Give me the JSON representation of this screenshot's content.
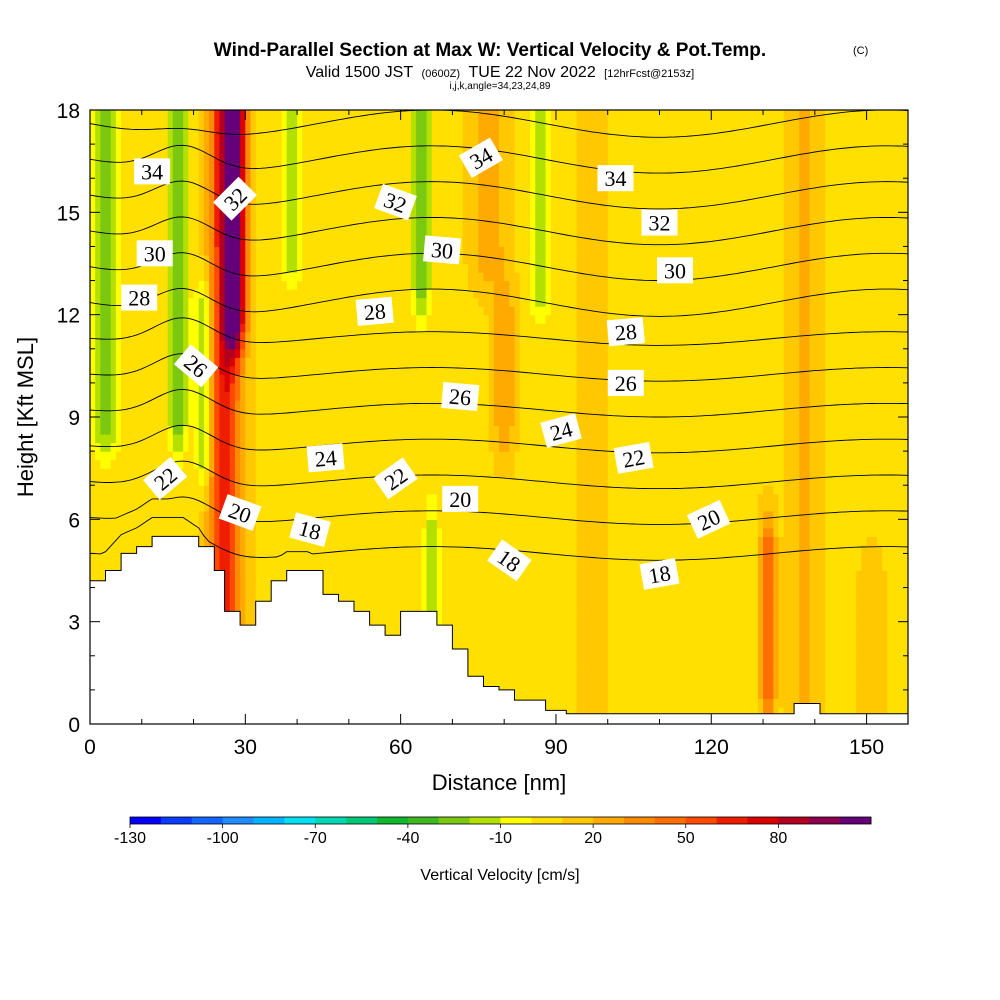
{
  "chart_data": {
    "type": "heatmap",
    "title": "Wind-Parallel Section at Max W: Vertical Velocity & Pot.Temp.",
    "title_mark": "(C)",
    "subtitle_parts": {
      "valid": "Valid 1500 JST",
      "utc": "(0600Z)",
      "date": "TUE 22 Nov 2022",
      "fcst": "[12hrFcst@2153z]"
    },
    "indices_text": "i,j,k,angle=34,23,24,89",
    "xlabel": "Distance [nm]",
    "ylabel": "Height [Kft MSL]",
    "xlim": [
      0,
      158
    ],
    "ylim": [
      0,
      18
    ],
    "x_ticks": [
      0,
      30,
      60,
      90,
      120,
      150
    ],
    "x_tick_labels": [
      "0",
      "30",
      "60",
      "90",
      "120",
      "150"
    ],
    "y_ticks": [
      0,
      3,
      6,
      9,
      12,
      15,
      18
    ],
    "y_tick_labels": [
      "0",
      "3",
      "6",
      "9",
      "12",
      "15",
      "18"
    ],
    "colorbar": {
      "label": "Vertical Velocity [cm/s]",
      "min": -130,
      "max": 100,
      "step": 10,
      "tick_values": [
        -130,
        -100,
        -70,
        -40,
        -10,
        20,
        50,
        80
      ],
      "tick_labels": [
        "-130",
        "-100",
        "-70",
        "-40",
        "-10",
        "20",
        "50",
        "80"
      ],
      "colors": [
        "#0000ff",
        "#0a3cff",
        "#1464ff",
        "#1e8cff",
        "#00b4ff",
        "#00e0f0",
        "#00d8b4",
        "#00c878",
        "#10b830",
        "#40b820",
        "#7cc810",
        "#b4e000",
        "#ffff00",
        "#ffe000",
        "#ffc800",
        "#ffaa00",
        "#ff8c00",
        "#ff6e00",
        "#ff4a00",
        "#f01e00",
        "#dc0000",
        "#b40020",
        "#8c0050",
        "#640078"
      ]
    },
    "theta_contour_levels": [
      18,
      19,
      20,
      21,
      22,
      23,
      24,
      25,
      26,
      27,
      28,
      29,
      30,
      31,
      32,
      33,
      34,
      35
    ],
    "theta_labels": [
      {
        "text": "34",
        "x": 12,
        "y": 16.2,
        "rot": 0
      },
      {
        "text": "32",
        "x": 28,
        "y": 15.4,
        "rot": -45
      },
      {
        "text": "30",
        "x": 12.5,
        "y": 13.8,
        "rot": 0
      },
      {
        "text": "28",
        "x": 9.5,
        "y": 12.5,
        "rot": 0
      },
      {
        "text": "26",
        "x": 20.5,
        "y": 10.5,
        "rot": 40
      },
      {
        "text": "22",
        "x": 14.5,
        "y": 7.2,
        "rot": -40
      },
      {
        "text": "20",
        "x": 29,
        "y": 6.2,
        "rot": 20
      },
      {
        "text": "18",
        "x": 42.5,
        "y": 5.7,
        "rot": 15
      },
      {
        "text": "24",
        "x": 45.5,
        "y": 7.8,
        "rot": -5
      },
      {
        "text": "28",
        "x": 55,
        "y": 12.1,
        "rot": -5
      },
      {
        "text": "32",
        "x": 59,
        "y": 15.3,
        "rot": 20
      },
      {
        "text": "30",
        "x": 68,
        "y": 13.9,
        "rot": 5
      },
      {
        "text": "34",
        "x": 75.5,
        "y": 16.6,
        "rot": -30
      },
      {
        "text": "22",
        "x": 59,
        "y": 7.2,
        "rot": -35
      },
      {
        "text": "26",
        "x": 71.5,
        "y": 9.6,
        "rot": 5
      },
      {
        "text": "20",
        "x": 71.5,
        "y": 6.6,
        "rot": 0
      },
      {
        "text": "18",
        "x": 81,
        "y": 4.8,
        "rot": 35
      },
      {
        "text": "24",
        "x": 91,
        "y": 8.6,
        "rot": -15
      },
      {
        "text": "34",
        "x": 101.5,
        "y": 16.0,
        "rot": 0
      },
      {
        "text": "32",
        "x": 110,
        "y": 14.7,
        "rot": 0
      },
      {
        "text": "30",
        "x": 113,
        "y": 13.3,
        "rot": 0
      },
      {
        "text": "28",
        "x": 103.5,
        "y": 11.5,
        "rot": -5
      },
      {
        "text": "26",
        "x": 103.5,
        "y": 10.0,
        "rot": 0
      },
      {
        "text": "22",
        "x": 105,
        "y": 7.8,
        "rot": -10
      },
      {
        "text": "20",
        "x": 119.5,
        "y": 6.0,
        "rot": -25
      },
      {
        "text": "18",
        "x": 110,
        "y": 4.4,
        "rot": -10
      }
    ],
    "terrain_kft": [
      [
        0,
        4.2
      ],
      [
        3,
        4.5
      ],
      [
        6,
        5.0
      ],
      [
        9,
        5.2
      ],
      [
        12,
        5.5
      ],
      [
        15,
        5.5
      ],
      [
        18,
        5.5
      ],
      [
        21,
        5.2
      ],
      [
        24,
        4.5
      ],
      [
        26,
        3.3
      ],
      [
        29,
        2.9
      ],
      [
        32,
        3.6
      ],
      [
        35,
        4.2
      ],
      [
        38,
        4.5
      ],
      [
        42,
        4.5
      ],
      [
        45,
        3.8
      ],
      [
        48,
        3.6
      ],
      [
        51,
        3.3
      ],
      [
        54,
        2.9
      ],
      [
        57,
        2.6
      ],
      [
        60,
        3.3
      ],
      [
        64,
        3.3
      ],
      [
        67,
        2.9
      ],
      [
        70,
        2.2
      ],
      [
        73,
        1.4
      ],
      [
        76,
        1.1
      ],
      [
        79,
        1.0
      ],
      [
        82,
        0.7
      ],
      [
        85,
        0.7
      ],
      [
        88,
        0.4
      ],
      [
        92,
        0.3
      ],
      [
        98,
        0.3
      ],
      [
        105,
        0.3
      ],
      [
        115,
        0.3
      ],
      [
        125,
        0.3
      ],
      [
        133,
        0.3
      ],
      [
        136,
        0.6
      ],
      [
        139,
        0.6
      ],
      [
        141,
        0.3
      ],
      [
        150,
        0.3
      ],
      [
        158,
        0.3
      ]
    ],
    "w_features": [
      {
        "x": 26,
        "y0": 0,
        "y1": 18,
        "w": 70,
        "width": 3.0
      },
      {
        "x": 28,
        "y0": 12,
        "y1": 18,
        "w": 90,
        "width": 2.0
      },
      {
        "x": 131,
        "y0": 1.2,
        "y1": 5.0,
        "w": 50,
        "width": 1.4
      },
      {
        "x": 77,
        "y0": 14,
        "y1": 18,
        "w": 30,
        "width": 3.0
      },
      {
        "x": 80,
        "y0": 9,
        "y1": 12,
        "w": 30,
        "width": 2.0
      },
      {
        "x": 97,
        "y0": 0,
        "y1": 18,
        "w": 20,
        "width": 2.5
      },
      {
        "x": 138,
        "y0": 0,
        "y1": 18,
        "w": 25,
        "width": 2.5
      },
      {
        "x": 151,
        "y0": 0,
        "y1": 4,
        "w": 20,
        "width": 2.0
      },
      {
        "x": 3,
        "y0": 9,
        "y1": 18,
        "w": -30,
        "width": 2.5
      },
      {
        "x": 17,
        "y0": 9,
        "y1": 18,
        "w": -25,
        "width": 2.0
      },
      {
        "x": 22,
        "y0": 8,
        "y1": 12,
        "w": -25,
        "width": 1.5
      },
      {
        "x": 39,
        "y0": 14,
        "y1": 18,
        "w": -20,
        "width": 1.8
      },
      {
        "x": 64,
        "y0": 13,
        "y1": 18,
        "w": -25,
        "width": 2.0
      },
      {
        "x": 87,
        "y0": 13,
        "y1": 18,
        "w": -20,
        "width": 2.0
      },
      {
        "x": 66,
        "y0": 3,
        "y1": 5.5,
        "w": -15,
        "width": 1.5
      }
    ]
  }
}
